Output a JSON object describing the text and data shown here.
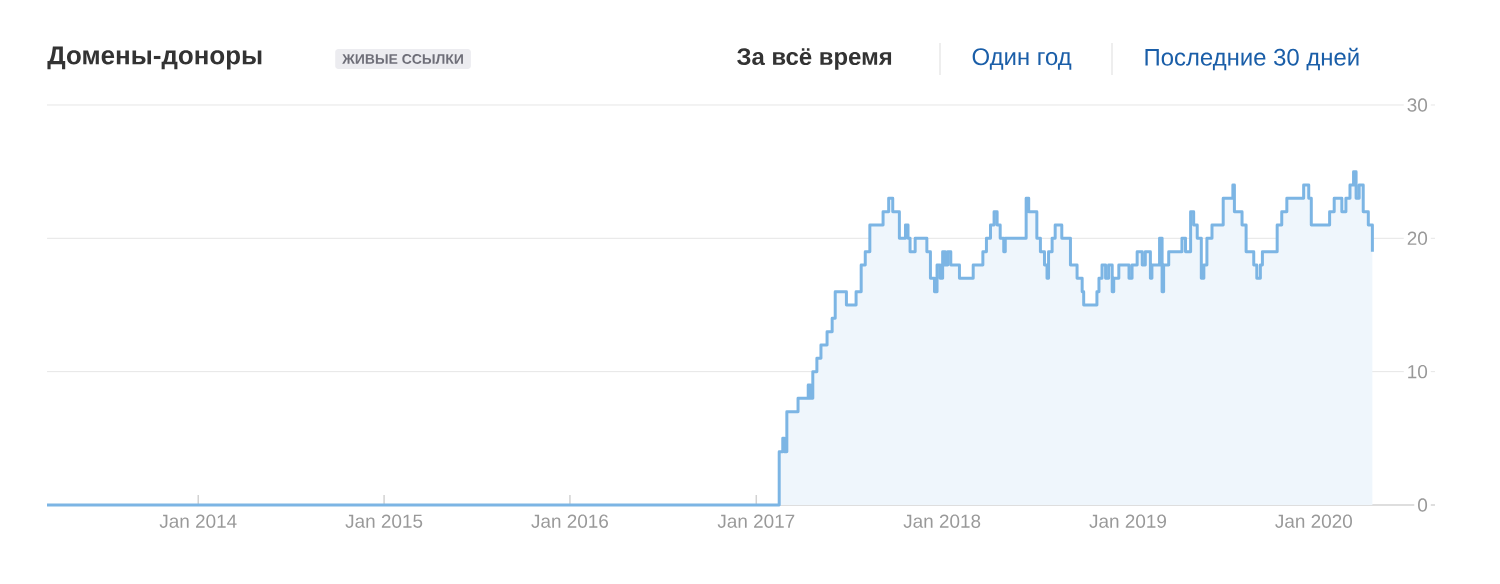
{
  "chart_data": {
    "type": "step",
    "title": "Домены-доноры",
    "subtitle": "ЖИВЫЕ ССЫЛКИ",
    "annotations": [
      "За всё время",
      "Один год",
      "Последние 30 дней"
    ],
    "x": [
      "2013-03-10",
      "2017-02-15",
      "2017-02-22",
      "2017-02-25",
      "2017-03-02",
      "2017-03-24",
      "2017-04-13",
      "2017-04-17",
      "2017-04-22",
      "2017-04-30",
      "2017-05-08",
      "2017-05-20",
      "2017-05-30",
      "2017-06-05",
      "2017-06-27",
      "2017-07-16",
      "2017-07-26",
      "2017-08-03",
      "2017-08-12",
      "2017-09-07",
      "2017-09-18",
      "2017-09-26",
      "2017-10-09",
      "2017-10-21",
      "2017-10-26",
      "2017-10-30",
      "2017-11-09",
      "2017-12-02",
      "2017-12-09",
      "2017-12-17",
      "2017-12-22",
      "2017-12-28",
      "2018-01-02",
      "2018-01-07",
      "2018-01-12",
      "2018-01-18",
      "2018-02-04",
      "2018-03-03",
      "2018-03-22",
      "2018-03-29",
      "2018-04-06",
      "2018-04-13",
      "2018-04-19",
      "2018-04-25",
      "2018-05-02",
      "2018-05-05",
      "2018-06-15",
      "2018-06-20",
      "2018-07-06",
      "2018-07-13",
      "2018-07-21",
      "2018-07-26",
      "2018-07-29",
      "2018-08-05",
      "2018-08-11",
      "2018-08-24",
      "2018-09-10",
      "2018-09-23",
      "2018-10-03",
      "2018-10-06",
      "2018-11-01",
      "2018-11-05",
      "2018-11-11",
      "2018-11-18",
      "2018-11-24",
      "2018-12-01",
      "2018-12-04",
      "2018-12-14",
      "2019-01-03",
      "2019-01-09",
      "2019-01-19",
      "2019-01-29",
      "2019-02-04",
      "2019-02-14",
      "2019-02-17",
      "2019-03-04",
      "2019-03-09",
      "2019-03-12",
      "2019-03-22",
      "2019-04-17",
      "2019-04-24",
      "2019-05-04",
      "2019-05-10",
      "2019-05-17",
      "2019-05-25",
      "2019-05-30",
      "2019-06-05",
      "2019-06-15",
      "2019-07-07",
      "2019-07-26",
      "2019-07-29",
      "2019-08-13",
      "2019-08-21",
      "2019-09-05",
      "2019-09-11",
      "2019-09-18",
      "2019-09-22",
      "2019-10-21",
      "2019-10-30",
      "2019-11-09",
      "2019-12-12",
      "2019-12-22",
      "2019-12-27",
      "2020-02-01",
      "2020-02-10",
      "2020-02-25",
      "2020-03-04",
      "2020-03-12",
      "2020-03-19",
      "2020-03-24",
      "2020-03-30",
      "2020-04-07",
      "2020-04-17",
      "2020-04-25"
    ],
    "series": [
      {
        "color": "#7cb5e4",
        "values": [
          0,
          4,
          5,
          4,
          7,
          8,
          9,
          8,
          10,
          11,
          12,
          13,
          14,
          16,
          15,
          16,
          18,
          19,
          21,
          22,
          23,
          22,
          20,
          21,
          20,
          19,
          20,
          19,
          17,
          16,
          18,
          17,
          19,
          18,
          19,
          18,
          17,
          18,
          19,
          20,
          21,
          22,
          21,
          20,
          19,
          20,
          23,
          22,
          20,
          19,
          18,
          17,
          19,
          20,
          21,
          20,
          18,
          17,
          16,
          15,
          16,
          17,
          18,
          17,
          18,
          16,
          17,
          18,
          17,
          18,
          19,
          18,
          19,
          17,
          18,
          20,
          16,
          18,
          19,
          20,
          19,
          22,
          21,
          20,
          17,
          18,
          20,
          21,
          23,
          24,
          22,
          21,
          19,
          18,
          17,
          18,
          19,
          21,
          22,
          23,
          24,
          23,
          21,
          22,
          23,
          22,
          23,
          24,
          25,
          23,
          24,
          22,
          21,
          19
        ]
      }
    ],
    "xlim": [
      "2013-03-10",
      "2020-08-26"
    ],
    "xticks": [
      {
        "value": "2014-01",
        "label": "Jan 2014"
      },
      {
        "value": "2015-01",
        "label": "Jan 2015"
      },
      {
        "value": "2016-01",
        "label": "Jan 2016"
      },
      {
        "value": "2017-01",
        "label": "Jan 2017"
      },
      {
        "value": "2018-01",
        "label": "Jan 2018"
      },
      {
        "value": "2019-01",
        "label": "Jan 2019"
      },
      {
        "value": "2020-01",
        "label": "Jan 2020"
      }
    ],
    "ylim": [
      0,
      30
    ],
    "yticks": [
      0,
      10,
      20,
      30
    ],
    "grid": "y"
  }
}
